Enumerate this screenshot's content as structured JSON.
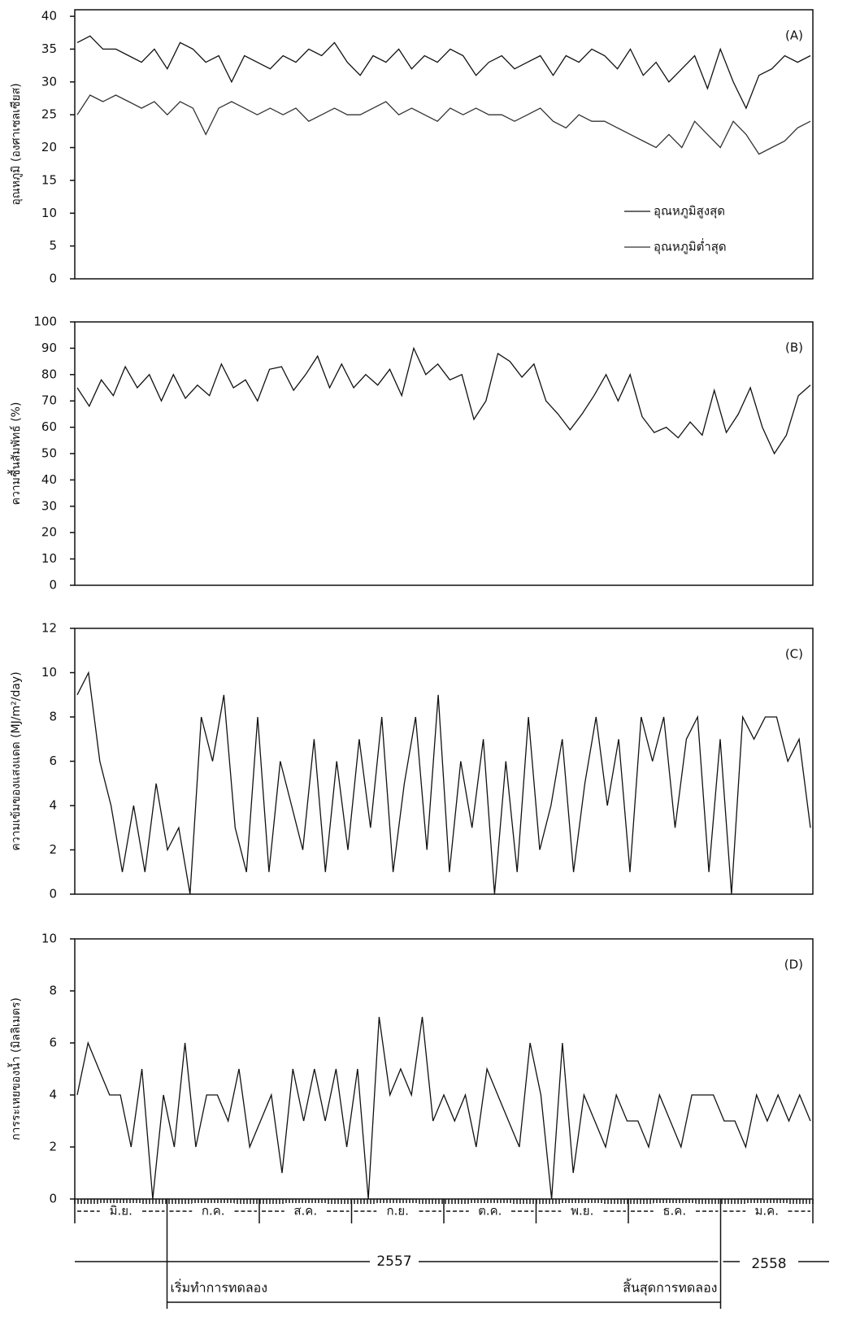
{
  "chart_data": [
    {
      "type": "line",
      "panel_label": "(A)",
      "ylabel": "อุณหภูมิ (องศาเซลเซียส)",
      "ylim": [
        0,
        41
      ],
      "yticks": [
        0,
        5,
        10,
        15,
        20,
        25,
        30,
        35,
        40
      ],
      "legend": "right",
      "series": [
        {
          "name": "อุณหภูมิสูงสุด",
          "color": "#111111",
          "values": [
            36,
            37,
            35,
            35,
            34,
            33,
            35,
            32,
            36,
            35,
            33,
            34,
            30,
            34,
            33,
            32,
            34,
            33,
            35,
            34,
            36,
            33,
            31,
            34,
            33,
            35,
            32,
            34,
            33,
            35,
            34,
            31,
            33,
            34,
            32,
            33,
            34,
            31,
            34,
            33,
            35,
            34,
            32,
            35,
            31,
            33,
            30,
            32,
            34,
            29,
            35,
            30,
            26,
            31,
            32,
            34,
            33,
            34
          ]
        },
        {
          "name": "อุณหภูมิต่ำสุด",
          "color": "#333333",
          "values": [
            25,
            28,
            27,
            28,
            27,
            26,
            27,
            25,
            27,
            26,
            22,
            26,
            27,
            26,
            25,
            26,
            25,
            26,
            24,
            25,
            26,
            25,
            25,
            26,
            27,
            25,
            26,
            25,
            24,
            26,
            25,
            26,
            25,
            25,
            24,
            25,
            26,
            24,
            23,
            25,
            24,
            24,
            23,
            22,
            21,
            20,
            22,
            20,
            24,
            22,
            20,
            24,
            22,
            19,
            20,
            21,
            23,
            24
          ]
        }
      ]
    },
    {
      "type": "line",
      "panel_label": "(B)",
      "ylabel": "ความชื้นสัมพัทธ์ (%)",
      "ylim": [
        0,
        100
      ],
      "yticks": [
        0,
        10,
        20,
        30,
        40,
        50,
        60,
        70,
        80,
        90,
        100
      ],
      "series": [
        {
          "color": "#111111",
          "values": [
            75,
            68,
            78,
            72,
            83,
            75,
            80,
            70,
            80,
            71,
            76,
            72,
            84,
            75,
            78,
            70,
            82,
            83,
            74,
            80,
            87,
            75,
            84,
            75,
            80,
            76,
            82,
            72,
            90,
            80,
            84,
            78,
            80,
            63,
            70,
            88,
            85,
            79,
            84,
            70,
            65,
            59,
            65,
            72,
            80,
            70,
            80,
            64,
            58,
            60,
            56,
            62,
            57,
            74,
            58,
            65,
            75,
            60,
            50,
            57,
            72,
            76
          ]
        }
      ]
    },
    {
      "type": "line",
      "panel_label": "(C)",
      "ylabel": "ความเข้มของแสงแดด (MJ/m²/day)",
      "ylim": [
        0,
        12
      ],
      "yticks": [
        0,
        2,
        4,
        6,
        8,
        10,
        12
      ],
      "series": [
        {
          "color": "#111111",
          "values": [
            9,
            10,
            6,
            4,
            1,
            4,
            1,
            5,
            2,
            3,
            0,
            8,
            6,
            9,
            3,
            1,
            8,
            1,
            6,
            4,
            2,
            7,
            1,
            6,
            2,
            7,
            3,
            8,
            1,
            5,
            8,
            2,
            9,
            1,
            6,
            3,
            7,
            0,
            6,
            1,
            8,
            2,
            4,
            7,
            1,
            5,
            8,
            4,
            7,
            1,
            8,
            6,
            8,
            3,
            7,
            8,
            1,
            7,
            0,
            8,
            7,
            8,
            8,
            6,
            7,
            3
          ]
        }
      ]
    },
    {
      "type": "line",
      "panel_label": "(D)",
      "ylabel": "การระเหยของน้ำ (มิลลิเมตร)",
      "ylim": [
        0,
        10
      ],
      "yticks": [
        0,
        2,
        4,
        6,
        8,
        10
      ],
      "series": [
        {
          "color": "#111111",
          "values": [
            4,
            6,
            5,
            4,
            4,
            2,
            5,
            0,
            4,
            2,
            6,
            2,
            4,
            4,
            3,
            5,
            2,
            3,
            4,
            1,
            5,
            3,
            5,
            3,
            5,
            2,
            5,
            0,
            7,
            4,
            5,
            4,
            7,
            3,
            4,
            3,
            4,
            2,
            5,
            4,
            3,
            2,
            6,
            4,
            0,
            6,
            1,
            4,
            3,
            2,
            4,
            3,
            3,
            2,
            4,
            3,
            2,
            4,
            4,
            4,
            3,
            3,
            2,
            4,
            3,
            4,
            3,
            4,
            3
          ]
        }
      ]
    }
  ],
  "time_axis": {
    "months": [
      "มิ.ย.",
      "ก.ค.",
      "ส.ค.",
      "ก.ย.",
      "ต.ค.",
      "พ.ย.",
      "ธ.ค.",
      "ม.ค."
    ],
    "years": [
      "2557",
      "2558"
    ],
    "start_label": "เริ่มทำการทดลอง",
    "end_label": "สิ้นสุดการทดลอง"
  }
}
